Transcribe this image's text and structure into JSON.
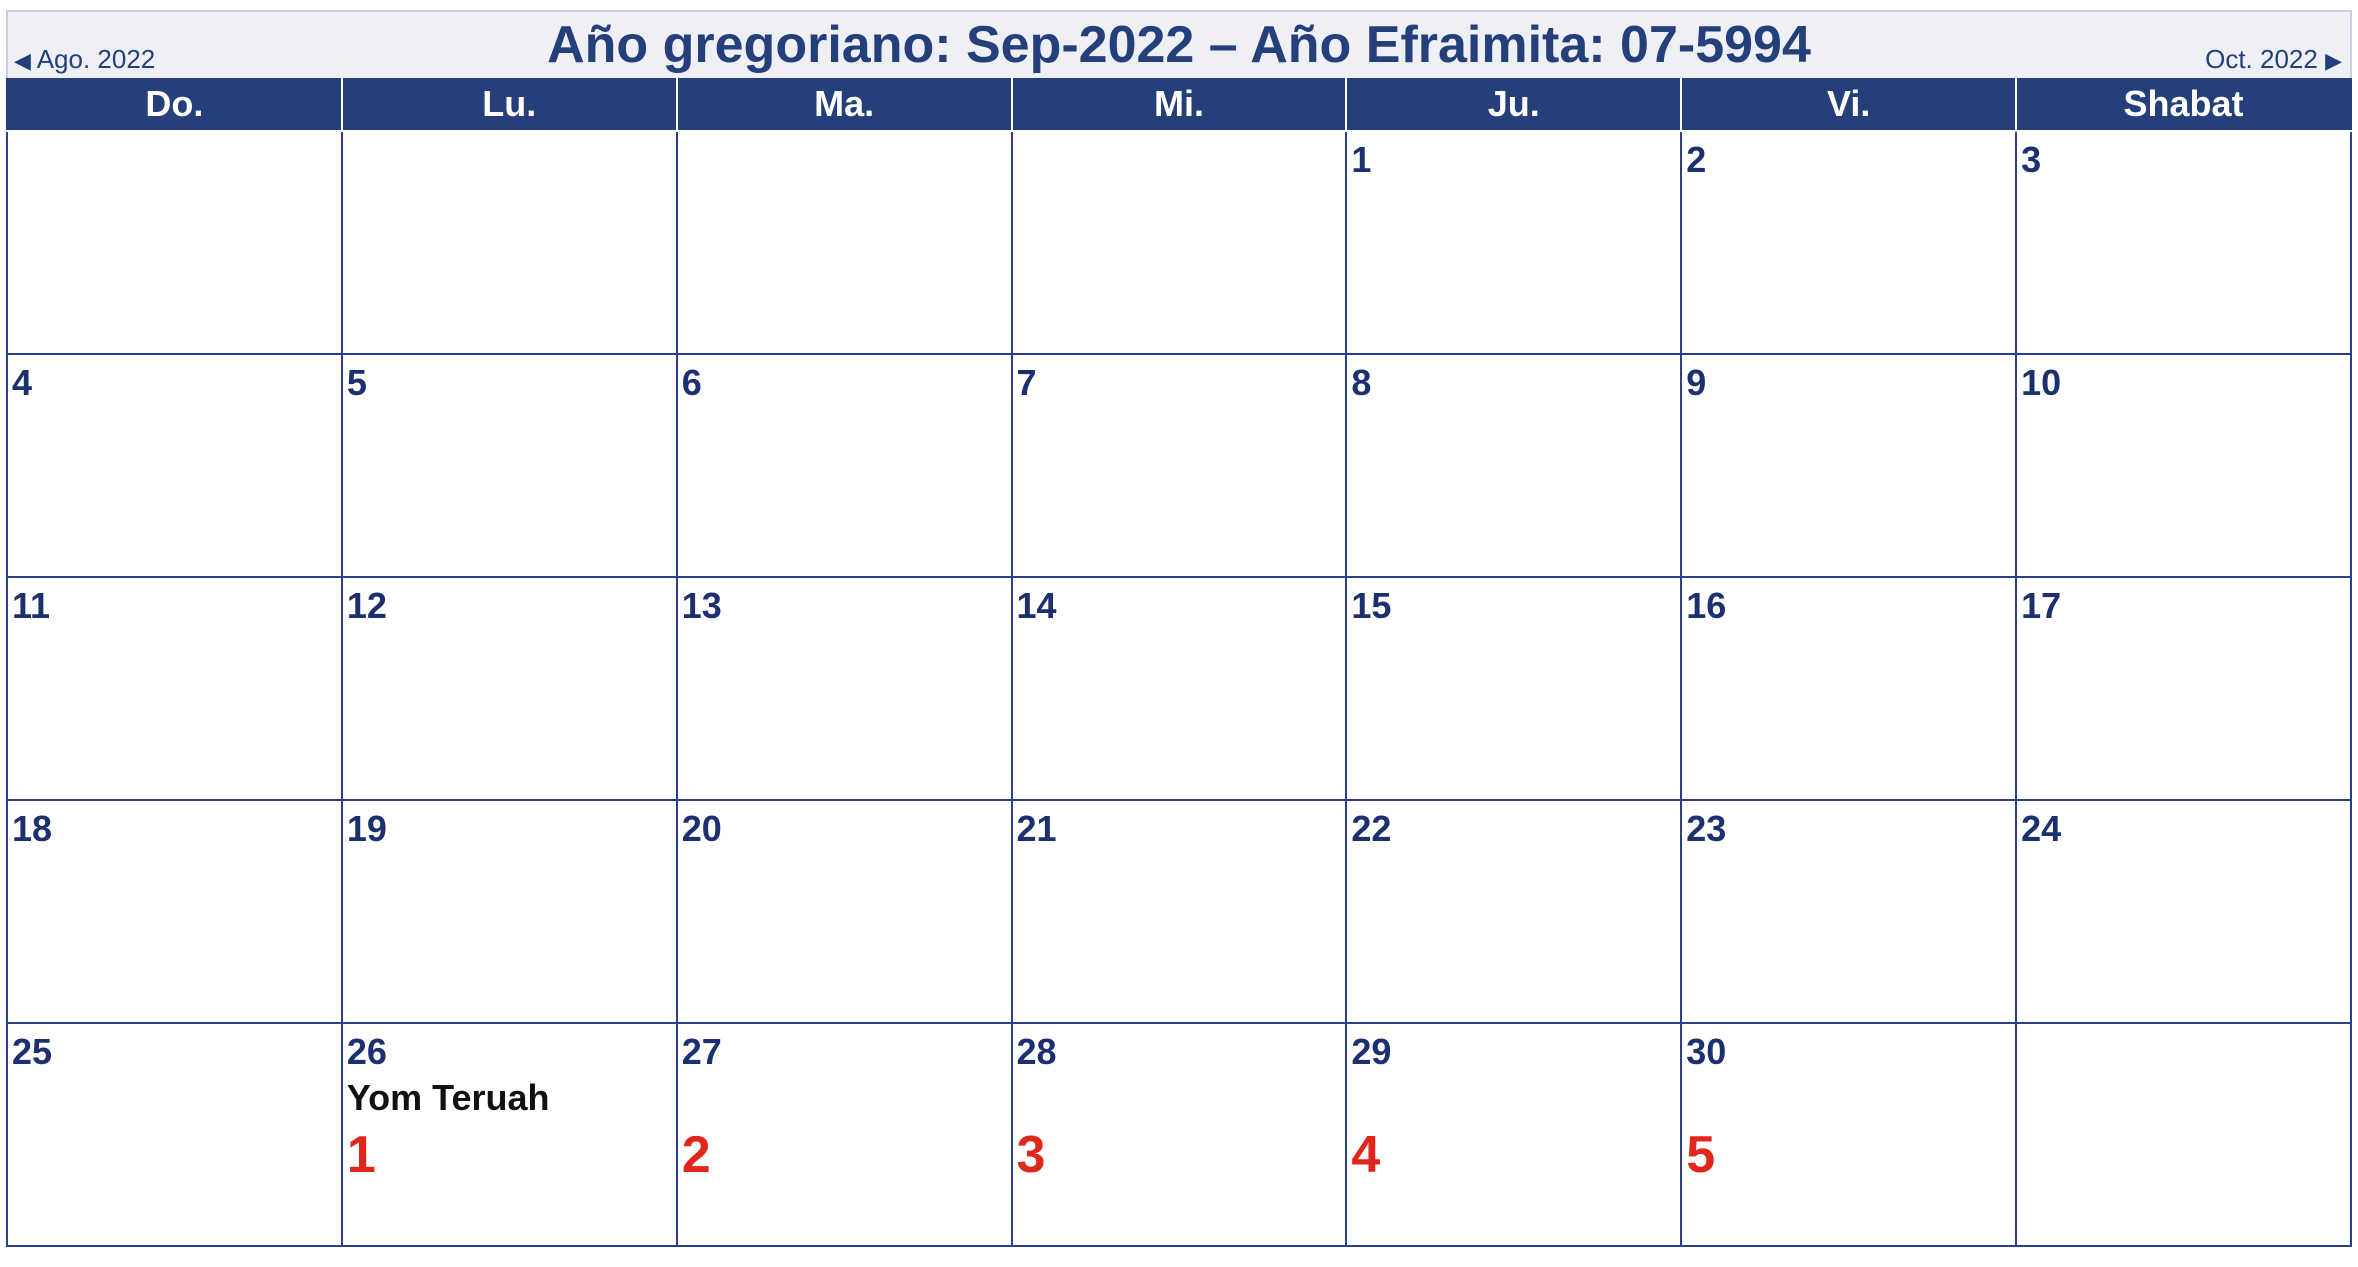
{
  "header": {
    "title": "Año gregoriano: Sep-2022 – Año Efraimita: 07-5994",
    "prev_label": "Ago. 2022",
    "prev_icon": "◀",
    "next_label": "Oct. 2022",
    "next_icon": "▶"
  },
  "weekdays": [
    "Do.",
    "Lu.",
    "Ma.",
    "Mi.",
    "Ju.",
    "Vi.",
    "Shabat"
  ],
  "colors": {
    "header_bg": "#243f7a",
    "title": "#243f7a",
    "weekend_bg": "#f8fae4",
    "empty_bg": "#e2e2e2",
    "hebrew_day": "#e1261c"
  },
  "weeks": [
    [
      {
        "day": "",
        "type": "empty"
      },
      {
        "day": "",
        "type": "empty"
      },
      {
        "day": "",
        "type": "empty"
      },
      {
        "day": "",
        "type": "empty"
      },
      {
        "day": "1",
        "type": "normal"
      },
      {
        "day": "2",
        "type": "normal"
      },
      {
        "day": "3",
        "type": "weekend"
      }
    ],
    [
      {
        "day": "4",
        "type": "weekend"
      },
      {
        "day": "5",
        "type": "normal"
      },
      {
        "day": "6",
        "type": "normal"
      },
      {
        "day": "7",
        "type": "normal"
      },
      {
        "day": "8",
        "type": "normal"
      },
      {
        "day": "9",
        "type": "normal"
      },
      {
        "day": "10",
        "type": "weekend"
      }
    ],
    [
      {
        "day": "11",
        "type": "weekend"
      },
      {
        "day": "12",
        "type": "normal"
      },
      {
        "day": "13",
        "type": "normal"
      },
      {
        "day": "14",
        "type": "normal"
      },
      {
        "day": "15",
        "type": "normal"
      },
      {
        "day": "16",
        "type": "normal"
      },
      {
        "day": "17",
        "type": "weekend"
      }
    ],
    [
      {
        "day": "18",
        "type": "weekend"
      },
      {
        "day": "19",
        "type": "normal"
      },
      {
        "day": "20",
        "type": "normal"
      },
      {
        "day": "21",
        "type": "normal"
      },
      {
        "day": "22",
        "type": "normal"
      },
      {
        "day": "23",
        "type": "normal"
      },
      {
        "day": "24",
        "type": "weekend"
      }
    ],
    [
      {
        "day": "25",
        "type": "weekend"
      },
      {
        "day": "26",
        "type": "normal",
        "event": "Yom Teruah",
        "hebrew_day": "1"
      },
      {
        "day": "27",
        "type": "normal",
        "hebrew_day": "2"
      },
      {
        "day": "28",
        "type": "normal",
        "hebrew_day": "3"
      },
      {
        "day": "29",
        "type": "normal",
        "hebrew_day": "4"
      },
      {
        "day": "30",
        "type": "normal",
        "hebrew_day": "5"
      },
      {
        "day": "",
        "type": "empty"
      }
    ]
  ]
}
